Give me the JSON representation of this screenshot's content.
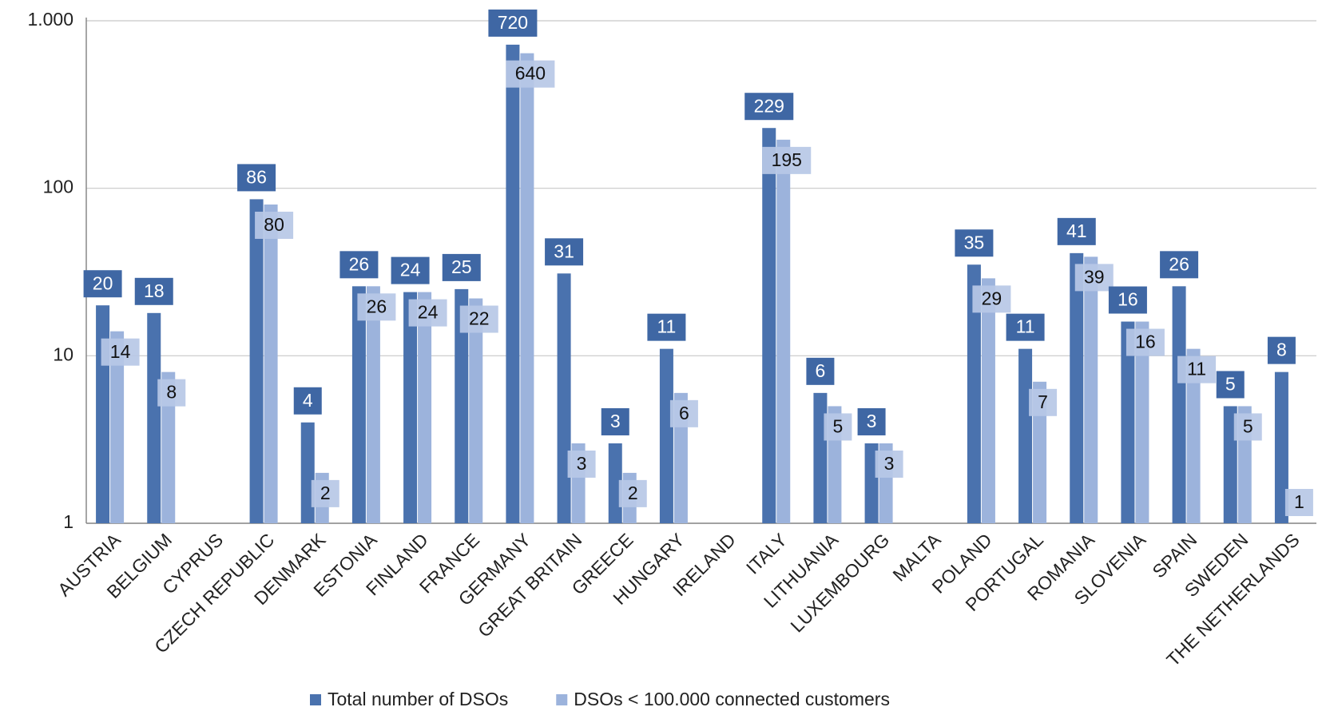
{
  "chart_data": {
    "type": "bar",
    "log_scale": true,
    "grid": true,
    "legend": "bottom",
    "categories": [
      "AUSTRIA",
      "BELGIUM",
      "CYPRUS",
      "CZECH REPUBLIC",
      "DENMARK",
      "ESTONIA",
      "FINLAND",
      "FRANCE",
      "GERMANY",
      "GREAT BRITAIN",
      "GREECE",
      "HUNGARY",
      "IRELAND",
      "ITALY",
      "LITHUANIA",
      "LUXEMBOURG",
      "MALTA",
      "POLAND",
      "PORTUGAL",
      "ROMANIA",
      "SLOVENIA",
      "SPAIN",
      "SWEDEN",
      "THE NETHERLANDS"
    ],
    "series": [
      {
        "name": "Total number of DSOs",
        "color": "#4a72ae",
        "values": [
          20,
          18,
          null,
          86,
          4,
          26,
          24,
          25,
          720,
          31,
          3,
          11,
          null,
          229,
          6,
          3,
          null,
          35,
          11,
          41,
          16,
          26,
          5,
          8
        ]
      },
      {
        "name": "DSOs < 100.000 connected customers",
        "color": "#9cb3dc",
        "values": [
          14,
          8,
          null,
          80,
          2,
          26,
          24,
          22,
          640,
          3,
          2,
          6,
          null,
          195,
          5,
          3,
          null,
          29,
          7,
          39,
          16,
          11,
          5,
          1
        ]
      }
    ],
    "ylim": [
      1,
      1000
    ],
    "yticks": [
      1,
      10,
      100,
      {
        "value": 1000,
        "label": "1.000"
      }
    ]
  }
}
